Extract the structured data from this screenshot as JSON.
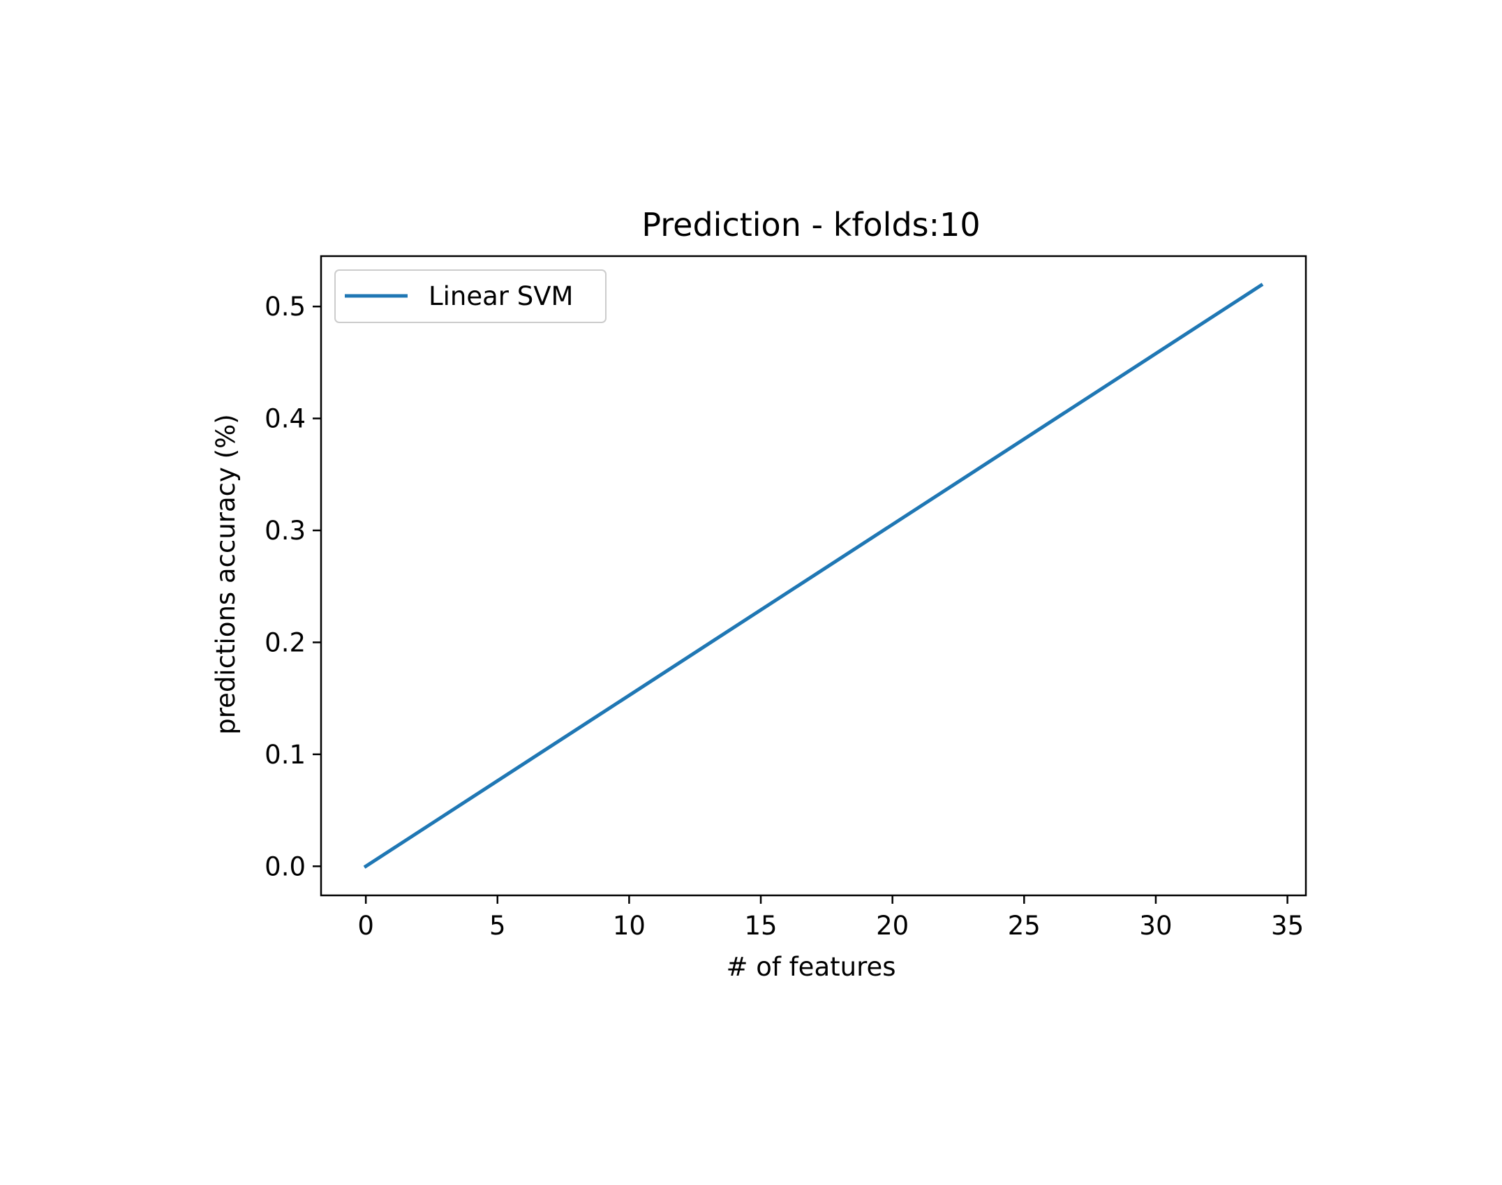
{
  "chart_data": {
    "type": "line",
    "title": "Prediction - kfolds:10",
    "xlabel": "# of features",
    "ylabel": "predictions accuracy (%)",
    "xlim": [
      -1.7,
      35.7
    ],
    "ylim": [
      -0.026,
      0.545
    ],
    "xticks": [
      0,
      5,
      10,
      15,
      20,
      25,
      30,
      35
    ],
    "xtick_labels": [
      "0",
      "5",
      "10",
      "15",
      "20",
      "25",
      "30",
      "35"
    ],
    "yticks": [
      0.0,
      0.1,
      0.2,
      0.3,
      0.4,
      0.5
    ],
    "ytick_labels": [
      "0.0",
      "0.1",
      "0.2",
      "0.3",
      "0.4",
      "0.5"
    ],
    "grid": false,
    "legend": "upper-left",
    "series": [
      {
        "name": "Linear SVM",
        "color": "#1f77b4",
        "x": [
          0,
          34
        ],
        "y": [
          0.0,
          0.519
        ]
      }
    ]
  }
}
